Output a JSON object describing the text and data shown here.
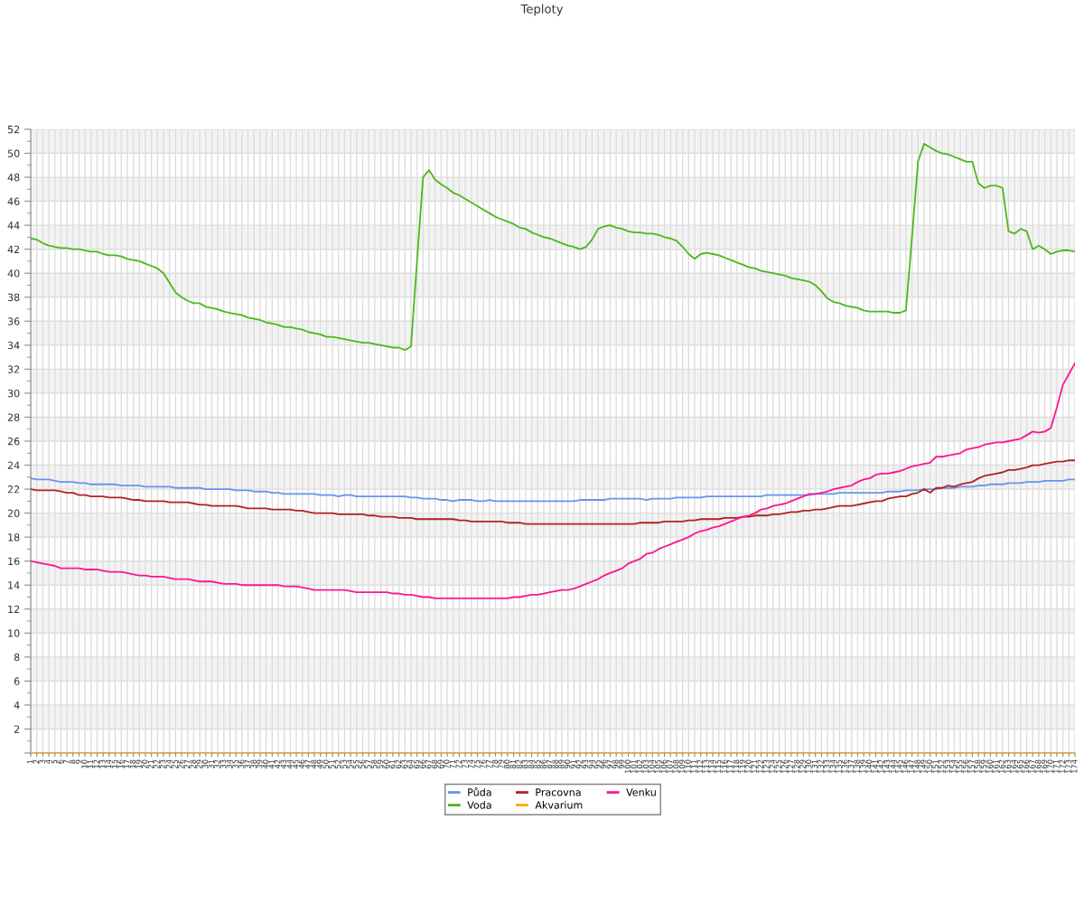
{
  "chart_data": {
    "type": "line",
    "title": "Teploty",
    "categories": [
      "1",
      "2",
      "3",
      "4",
      "5",
      "6",
      "7",
      "8",
      "9",
      "10",
      "11",
      "12",
      "13",
      "14",
      "15",
      "16",
      "17",
      "18",
      "19",
      "20",
      "21",
      "22",
      "23",
      "24",
      "25",
      "26",
      "27",
      "28",
      "29",
      "30",
      "31",
      "32",
      "33",
      "34",
      "35",
      "36",
      "37",
      "38",
      "39",
      "40",
      "41",
      "42",
      "43",
      "44",
      "45",
      "46",
      "47",
      "48",
      "49",
      "50",
      "51",
      "52",
      "53",
      "54",
      "55",
      "56",
      "57",
      "58",
      "59",
      "60",
      "61",
      "62",
      "63",
      "64",
      "65",
      "66",
      "67",
      "68",
      "69",
      "70",
      "71",
      "72",
      "73",
      "74",
      "75",
      "76",
      "77",
      "78",
      "79",
      "80",
      "81",
      "82",
      "83",
      "84",
      "85",
      "86",
      "87",
      "88",
      "89",
      "90",
      "91",
      "92",
      "93",
      "94",
      "95",
      "96",
      "97",
      "98",
      "99",
      "100",
      "101",
      "102",
      "103",
      "104",
      "105",
      "106",
      "107",
      "108",
      "109",
      "110",
      "111",
      "112",
      "113",
      "114",
      "115",
      "116",
      "117",
      "118",
      "119",
      "120",
      "121",
      "122",
      "123",
      "124",
      "125",
      "126",
      "127",
      "128",
      "129",
      "130",
      "131",
      "132",
      "133",
      "134",
      "135",
      "136",
      "137",
      "138",
      "139",
      "140",
      "141",
      "142",
      "143",
      "144",
      "145",
      "146",
      "147",
      "148",
      "149",
      "150",
      "151",
      "152",
      "153",
      "154",
      "155",
      "156",
      "157",
      "158",
      "159",
      "160",
      "161",
      "162",
      "163",
      "164",
      "165",
      "166",
      "167",
      "168",
      "169",
      "170",
      "171",
      "172",
      "173",
      "174"
    ],
    "series": [
      {
        "name": "Půda",
        "color": "#6495ed",
        "values": [
          22.9,
          22.8,
          22.8,
          22.8,
          22.7,
          22.6,
          22.6,
          22.6,
          22.5,
          22.5,
          22.4,
          22.4,
          22.4,
          22.4,
          22.4,
          22.3,
          22.3,
          22.3,
          22.3,
          22.2,
          22.2,
          22.2,
          22.2,
          22.2,
          22.1,
          22.1,
          22.1,
          22.1,
          22.1,
          22.0,
          22.0,
          22.0,
          22.0,
          22.0,
          21.9,
          21.9,
          21.9,
          21.8,
          21.8,
          21.8,
          21.7,
          21.7,
          21.6,
          21.6,
          21.6,
          21.6,
          21.6,
          21.6,
          21.5,
          21.5,
          21.5,
          21.4,
          21.5,
          21.5,
          21.4,
          21.4,
          21.4,
          21.4,
          21.4,
          21.4,
          21.4,
          21.4,
          21.4,
          21.3,
          21.3,
          21.2,
          21.2,
          21.2,
          21.1,
          21.1,
          21.0,
          21.1,
          21.1,
          21.1,
          21.0,
          21.0,
          21.1,
          21.0,
          21.0,
          21.0,
          21.0,
          21.0,
          21.0,
          21.0,
          21.0,
          21.0,
          21.0,
          21.0,
          21.0,
          21.0,
          21.0,
          21.1,
          21.1,
          21.1,
          21.1,
          21.1,
          21.2,
          21.2,
          21.2,
          21.2,
          21.2,
          21.2,
          21.1,
          21.2,
          21.2,
          21.2,
          21.2,
          21.3,
          21.3,
          21.3,
          21.3,
          21.3,
          21.4,
          21.4,
          21.4,
          21.4,
          21.4,
          21.4,
          21.4,
          21.4,
          21.4,
          21.4,
          21.5,
          21.5,
          21.5,
          21.5,
          21.5,
          21.5,
          21.5,
          21.5,
          21.6,
          21.6,
          21.6,
          21.6,
          21.7,
          21.7,
          21.7,
          21.7,
          21.7,
          21.7,
          21.7,
          21.7,
          21.8,
          21.8,
          21.8,
          21.9,
          21.9,
          21.9,
          22.0,
          22.0,
          22.0,
          22.1,
          22.1,
          22.1,
          22.2,
          22.2,
          22.2,
          22.3,
          22.3,
          22.4,
          22.4,
          22.4,
          22.5,
          22.5,
          22.5,
          22.6,
          22.6,
          22.6,
          22.7,
          22.7,
          22.7,
          22.7,
          22.8,
          22.8
        ]
      },
      {
        "name": "Voda",
        "color": "#4cb81a",
        "values": [
          42.9,
          42.8,
          42.5,
          42.3,
          42.2,
          42.1,
          42.1,
          42.0,
          42.0,
          41.9,
          41.8,
          41.8,
          41.6,
          41.5,
          41.5,
          41.4,
          41.2,
          41.1,
          41.0,
          40.8,
          40.6,
          40.4,
          40.0,
          39.2,
          38.4,
          38.0,
          37.7,
          37.5,
          37.5,
          37.2,
          37.1,
          37.0,
          36.8,
          36.7,
          36.6,
          36.5,
          36.3,
          36.2,
          36.1,
          35.9,
          35.8,
          35.7,
          35.5,
          35.5,
          35.4,
          35.3,
          35.1,
          35.0,
          34.9,
          34.7,
          34.7,
          34.6,
          34.5,
          34.4,
          34.3,
          34.2,
          34.2,
          34.1,
          34.0,
          33.9,
          33.8,
          33.8,
          33.6,
          33.9,
          41.0,
          48.0,
          48.6,
          47.8,
          47.4,
          47.1,
          46.7,
          46.5,
          46.2,
          45.9,
          45.6,
          45.3,
          45.0,
          44.7,
          44.5,
          44.3,
          44.1,
          43.8,
          43.7,
          43.4,
          43.2,
          43.0,
          42.9,
          42.7,
          42.5,
          42.3,
          42.2,
          42.0,
          42.2,
          42.8,
          43.7,
          43.9,
          44.0,
          43.8,
          43.7,
          43.5,
          43.4,
          43.4,
          43.3,
          43.3,
          43.2,
          43.0,
          42.9,
          42.7,
          42.2,
          41.6,
          41.2,
          41.6,
          41.7,
          41.6,
          41.5,
          41.3,
          41.1,
          40.9,
          40.7,
          40.5,
          40.4,
          40.2,
          40.1,
          40.0,
          39.9,
          39.8,
          39.6,
          39.5,
          39.4,
          39.3,
          39.0,
          38.5,
          37.9,
          37.6,
          37.5,
          37.3,
          37.2,
          37.1,
          36.9,
          36.8,
          36.8,
          36.8,
          36.8,
          36.7,
          36.7,
          36.9,
          43.0,
          49.3,
          50.8,
          50.5,
          50.2,
          50.0,
          49.9,
          49.7,
          49.5,
          49.3,
          49.3,
          47.5,
          47.1,
          47.3,
          47.3,
          47.1,
          43.5,
          43.3,
          43.7,
          43.5,
          42.0,
          42.3,
          42.0,
          41.6,
          41.8,
          41.9,
          41.9,
          41.8
        ]
      },
      {
        "name": "Pracovna",
        "color": "#b22222",
        "values": [
          22.0,
          21.9,
          21.9,
          21.9,
          21.9,
          21.8,
          21.7,
          21.7,
          21.5,
          21.5,
          21.4,
          21.4,
          21.4,
          21.3,
          21.3,
          21.3,
          21.2,
          21.1,
          21.1,
          21.0,
          21.0,
          21.0,
          21.0,
          20.9,
          20.9,
          20.9,
          20.9,
          20.8,
          20.7,
          20.7,
          20.6,
          20.6,
          20.6,
          20.6,
          20.6,
          20.5,
          20.4,
          20.4,
          20.4,
          20.4,
          20.3,
          20.3,
          20.3,
          20.3,
          20.2,
          20.2,
          20.1,
          20.0,
          20.0,
          20.0,
          20.0,
          19.9,
          19.9,
          19.9,
          19.9,
          19.9,
          19.8,
          19.8,
          19.7,
          19.7,
          19.7,
          19.6,
          19.6,
          19.6,
          19.5,
          19.5,
          19.5,
          19.5,
          19.5,
          19.5,
          19.5,
          19.4,
          19.4,
          19.3,
          19.3,
          19.3,
          19.3,
          19.3,
          19.3,
          19.2,
          19.2,
          19.2,
          19.1,
          19.1,
          19.1,
          19.1,
          19.1,
          19.1,
          19.1,
          19.1,
          19.1,
          19.1,
          19.1,
          19.1,
          19.1,
          19.1,
          19.1,
          19.1,
          19.1,
          19.1,
          19.1,
          19.2,
          19.2,
          19.2,
          19.2,
          19.3,
          19.3,
          19.3,
          19.3,
          19.4,
          19.4,
          19.5,
          19.5,
          19.5,
          19.5,
          19.6,
          19.6,
          19.6,
          19.7,
          19.7,
          19.8,
          19.8,
          19.8,
          19.9,
          19.9,
          20.0,
          20.1,
          20.1,
          20.2,
          20.2,
          20.3,
          20.3,
          20.4,
          20.5,
          20.6,
          20.6,
          20.6,
          20.7,
          20.8,
          20.9,
          21.0,
          21.0,
          21.2,
          21.3,
          21.4,
          21.4,
          21.6,
          21.7,
          22.0,
          21.7,
          22.1,
          22.1,
          22.3,
          22.2,
          22.4,
          22.5,
          22.6,
          22.9,
          23.1,
          23.2,
          23.3,
          23.4,
          23.6,
          23.6,
          23.7,
          23.8,
          24.0,
          24.0,
          24.1,
          24.2,
          24.3,
          24.3,
          24.4,
          24.4
        ]
      },
      {
        "name": "Akvarium",
        "color": "#ffa500",
        "values": [
          0,
          0,
          0,
          0,
          0,
          0,
          0,
          0,
          0,
          0,
          0,
          0,
          0,
          0,
          0,
          0,
          0,
          0,
          0,
          0,
          0,
          0,
          0,
          0,
          0,
          0,
          0,
          0,
          0,
          0,
          0,
          0,
          0,
          0,
          0,
          0,
          0,
          0,
          0,
          0,
          0,
          0,
          0,
          0,
          0,
          0,
          0,
          0,
          0,
          0,
          0,
          0,
          0,
          0,
          0,
          0,
          0,
          0,
          0,
          0,
          0,
          0,
          0,
          0,
          0,
          0,
          0,
          0,
          0,
          0,
          0,
          0,
          0,
          0,
          0,
          0,
          0,
          0,
          0,
          0,
          0,
          0,
          0,
          0,
          0,
          0,
          0,
          0,
          0,
          0,
          0,
          0,
          0,
          0,
          0,
          0,
          0,
          0,
          0,
          0,
          0,
          0,
          0,
          0,
          0,
          0,
          0,
          0,
          0,
          0,
          0,
          0,
          0,
          0,
          0,
          0,
          0,
          0,
          0,
          0,
          0,
          0,
          0,
          0,
          0,
          0,
          0,
          0,
          0,
          0,
          0,
          0,
          0,
          0,
          0,
          0,
          0,
          0,
          0,
          0,
          0,
          0,
          0,
          0,
          0,
          0,
          0,
          0,
          0,
          0,
          0,
          0,
          0,
          0,
          0,
          0,
          0,
          0,
          0,
          0,
          0,
          0,
          0,
          0,
          0,
          0,
          0,
          0,
          0,
          0,
          0,
          0,
          0,
          0
        ]
      },
      {
        "name": "Venku",
        "color": "#ff1493",
        "values": [
          16.0,
          15.9,
          15.8,
          15.7,
          15.6,
          15.4,
          15.4,
          15.4,
          15.4,
          15.3,
          15.3,
          15.3,
          15.2,
          15.1,
          15.1,
          15.1,
          15.0,
          14.9,
          14.8,
          14.8,
          14.7,
          14.7,
          14.7,
          14.6,
          14.5,
          14.5,
          14.5,
          14.4,
          14.3,
          14.3,
          14.3,
          14.2,
          14.1,
          14.1,
          14.1,
          14.0,
          14.0,
          14.0,
          14.0,
          14.0,
          14.0,
          14.0,
          13.9,
          13.9,
          13.9,
          13.8,
          13.7,
          13.6,
          13.6,
          13.6,
          13.6,
          13.6,
          13.6,
          13.5,
          13.4,
          13.4,
          13.4,
          13.4,
          13.4,
          13.4,
          13.3,
          13.3,
          13.2,
          13.2,
          13.1,
          13.0,
          13.0,
          12.9,
          12.9,
          12.9,
          12.9,
          12.9,
          12.9,
          12.9,
          12.9,
          12.9,
          12.9,
          12.9,
          12.9,
          12.9,
          13.0,
          13.0,
          13.1,
          13.2,
          13.2,
          13.3,
          13.4,
          13.5,
          13.6,
          13.6,
          13.7,
          13.9,
          14.1,
          14.3,
          14.5,
          14.8,
          15.0,
          15.2,
          15.4,
          15.8,
          16.0,
          16.2,
          16.6,
          16.7,
          17.0,
          17.2,
          17.4,
          17.6,
          17.8,
          18.0,
          18.3,
          18.5,
          18.6,
          18.8,
          18.9,
          19.1,
          19.3,
          19.5,
          19.7,
          19.8,
          20.0,
          20.3,
          20.4,
          20.6,
          20.7,
          20.8,
          21.0,
          21.2,
          21.4,
          21.6,
          21.6,
          21.7,
          21.8,
          22.0,
          22.1,
          22.2,
          22.3,
          22.6,
          22.8,
          22.9,
          23.2,
          23.3,
          23.3,
          23.4,
          23.5,
          23.7,
          23.9,
          24.0,
          24.1,
          24.2,
          24.7,
          24.7,
          24.8,
          24.9,
          25.0,
          25.3,
          25.4,
          25.5,
          25.7,
          25.8,
          25.9,
          25.9,
          26.0,
          26.1,
          26.2,
          26.5,
          26.8,
          26.7,
          26.8,
          27.1,
          28.8,
          30.7,
          31.6,
          32.5
        ]
      }
    ],
    "ylim": [
      0,
      52
    ],
    "yticks": [
      {
        "value": 0,
        "label": null
      },
      2,
      4,
      6,
      8,
      10,
      12,
      14,
      16,
      18,
      20,
      22,
      24,
      26,
      28,
      30,
      32,
      34,
      36,
      38,
      40,
      42,
      44,
      46,
      48,
      50,
      52
    ],
    "grid": true,
    "legend": "bottom",
    "line_style": "solid"
  }
}
